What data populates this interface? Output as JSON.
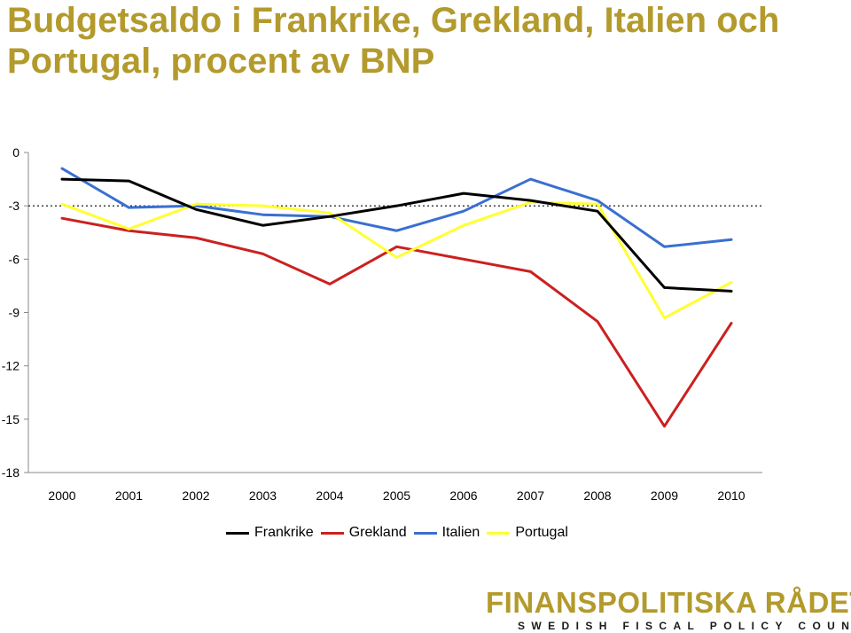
{
  "header": {
    "title_line1": "Budgetsaldo i Frankrike, Grekland, Italien och",
    "title_line2": "Portugal, procent av BNP"
  },
  "logo": {
    "main": "FINANSPOLITISKA RÅDET",
    "sub": "SWEDISH FISCAL POLICY COUNCIL",
    "color": "#b39a2c"
  },
  "chart_data": {
    "type": "line",
    "title": "Budgetsaldo i Frankrike, Grekland, Italien och Portugal, procent av BNP",
    "x": [
      "2000",
      "2001",
      "2002",
      "2003",
      "2004",
      "2005",
      "2006",
      "2007",
      "2008",
      "2009",
      "2010"
    ],
    "ylim": [
      -18,
      0
    ],
    "yticks": [
      "0",
      "-3",
      "-6",
      "-9",
      "-12",
      "-15",
      "-18"
    ],
    "ytick_values": [
      0,
      -3,
      -6,
      -9,
      -12,
      -15,
      -18
    ],
    "reference_line": -3,
    "grid": false,
    "legend_position": "bottom",
    "series": [
      {
        "name": "Frankrike",
        "color": "#000000",
        "values": [
          -1.5,
          -1.6,
          -3.2,
          -4.1,
          -3.6,
          -3.0,
          -2.3,
          -2.7,
          -3.3,
          -7.6,
          -7.8
        ]
      },
      {
        "name": "Grekland",
        "color": "#cc2020",
        "values": [
          -3.7,
          -4.4,
          -4.8,
          -5.7,
          -7.4,
          -5.3,
          -6.0,
          -6.7,
          -9.5,
          -15.4,
          -9.6
        ]
      },
      {
        "name": "Italien",
        "color": "#3a6fd1",
        "values": [
          -0.9,
          -3.1,
          -3.0,
          -3.5,
          -3.6,
          -4.4,
          -3.3,
          -1.5,
          -2.7,
          -5.3,
          -4.9
        ]
      },
      {
        "name": "Portugal",
        "color": "#ffff33",
        "values": [
          -2.9,
          -4.3,
          -2.9,
          -3.0,
          -3.4,
          -5.9,
          -4.1,
          -2.8,
          -2.9,
          -9.3,
          -7.3
        ]
      }
    ]
  }
}
